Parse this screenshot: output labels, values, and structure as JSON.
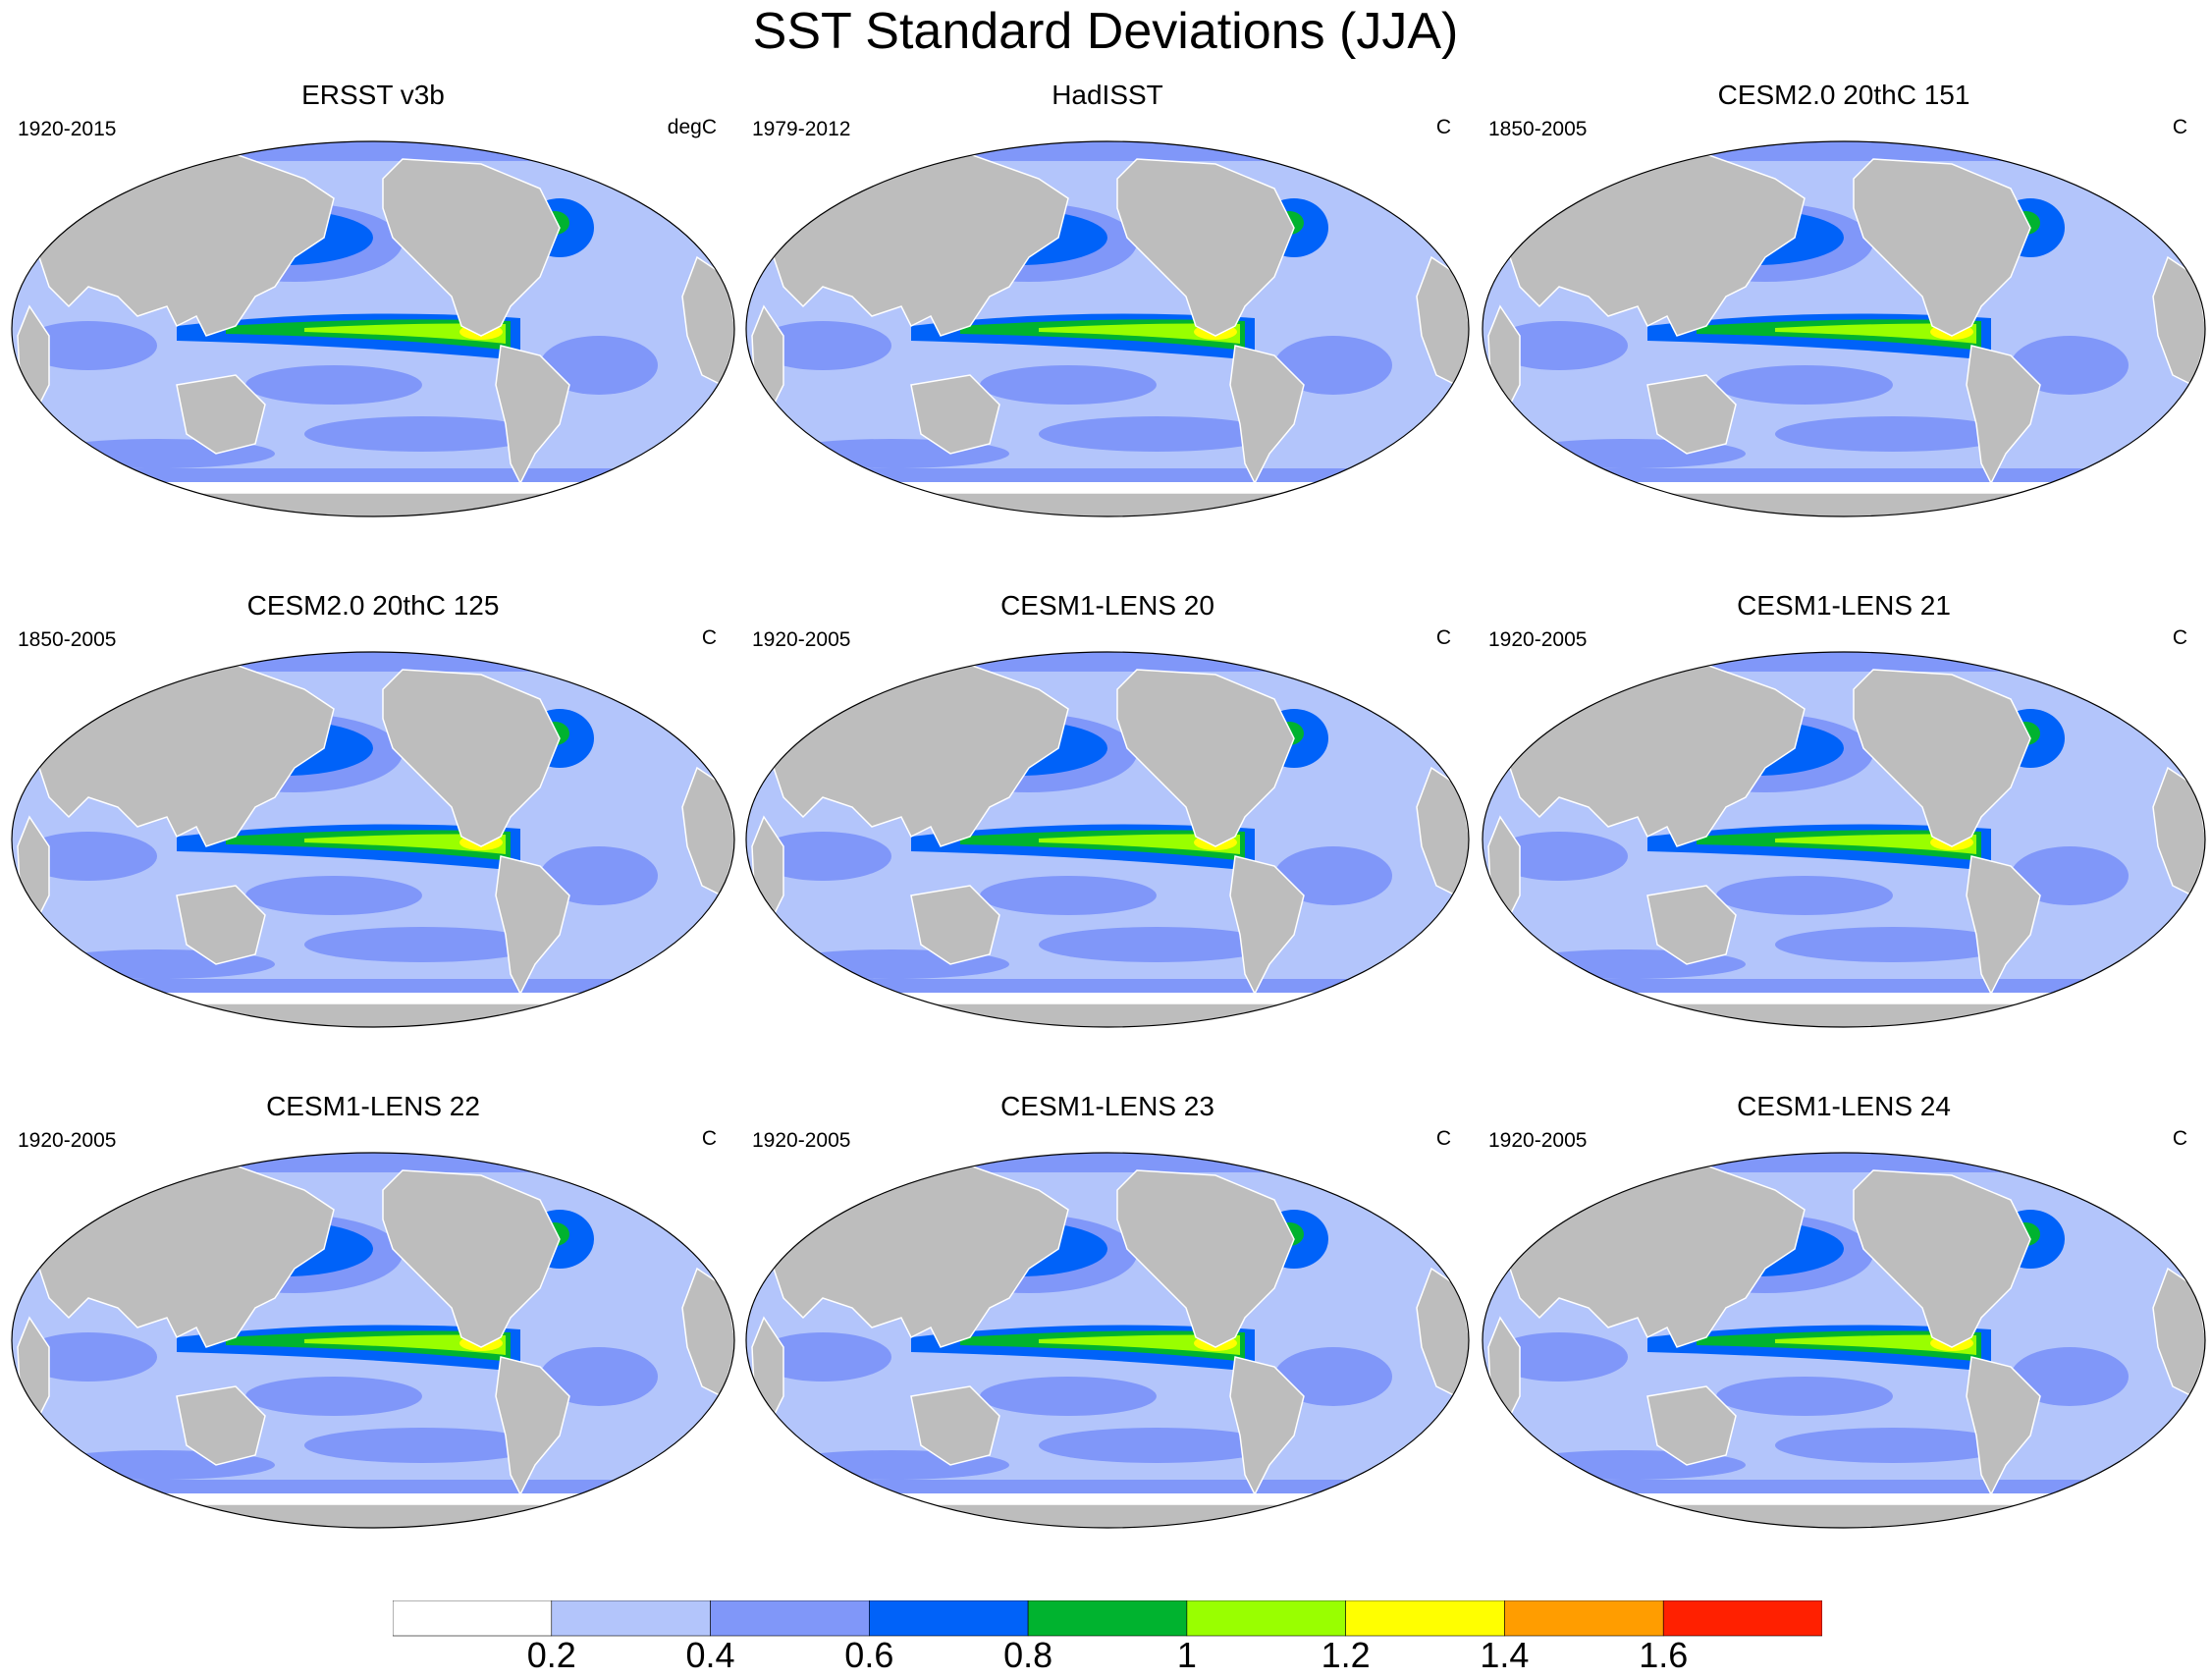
{
  "title": "SST Standard Deviations (JJA)",
  "panels": [
    {
      "title": "ERSST v3b",
      "years": "1920-2015",
      "units": "degC"
    },
    {
      "title": "HadISST",
      "years": "1979-2012",
      "units": "C"
    },
    {
      "title": "CESM2.0 20thC 151",
      "years": "1850-2005",
      "units": "C"
    },
    {
      "title": "CESM2.0 20thC 125",
      "years": "1850-2005",
      "units": "C"
    },
    {
      "title": "CESM1-LENS 20",
      "years": "1920-2005",
      "units": "C"
    },
    {
      "title": "CESM1-LENS 21",
      "years": "1920-2005",
      "units": "C"
    },
    {
      "title": "CESM1-LENS 22",
      "years": "1920-2005",
      "units": "C"
    },
    {
      "title": "CESM1-LENS 23",
      "years": "1920-2005",
      "units": "C"
    },
    {
      "title": "CESM1-LENS 24",
      "years": "1920-2005",
      "units": "C"
    }
  ],
  "colorbar": {
    "colors": [
      "#ffffff",
      "#b3c5fb",
      "#8097f9",
      "#0062f9",
      "#00b32f",
      "#99ff00",
      "#ffff00",
      "#ff9d00",
      "#ff2000"
    ],
    "labels": [
      "0.2",
      "0.4",
      "0.6",
      "0.8",
      "1",
      "1.2",
      "1.4",
      "1.6"
    ]
  },
  "land_color": "#bdbdbd"
}
